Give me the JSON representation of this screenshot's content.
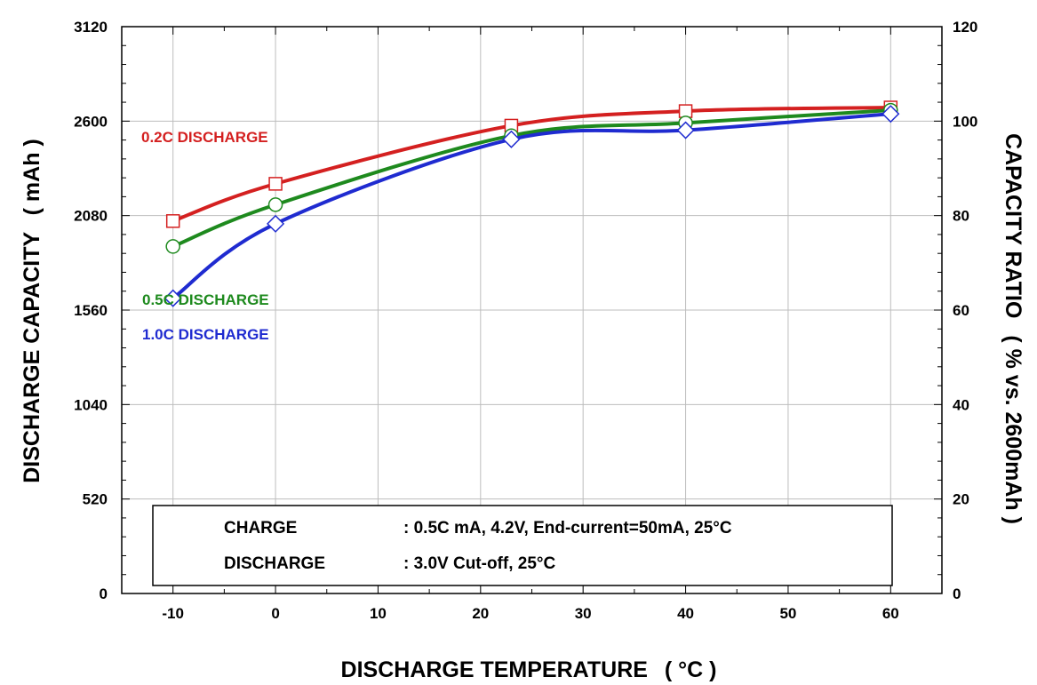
{
  "chart_data": {
    "type": "line",
    "xlabel": "DISCHARGE TEMPERATURE",
    "xlabel_unit": "( °C )",
    "ylabel": "DISCHARGE CAPACITY",
    "ylabel_unit": "( mAh )",
    "y2label": "CAPACITY RATIO",
    "y2label_unit": "( % vs. 2600mAh )",
    "xlim": [
      -15,
      65
    ],
    "ylim": [
      0,
      3120
    ],
    "y2lim": [
      0,
      120
    ],
    "xticks": [
      -10,
      0,
      10,
      20,
      30,
      40,
      50,
      60
    ],
    "xtick_labels": [
      "-10",
      "0",
      "10",
      "20",
      "30",
      "40",
      "50",
      "60"
    ],
    "yticks": [
      0,
      520,
      1040,
      1560,
      2080,
      2600,
      3120
    ],
    "ytick_labels": [
      "0",
      "520",
      "1040",
      "1560",
      "2080",
      "2600",
      "3120"
    ],
    "y2ticks": [
      0,
      20,
      40,
      60,
      80,
      100,
      120
    ],
    "y2tick_labels": [
      "0",
      "20",
      "40",
      "60",
      "80",
      "100",
      "120"
    ],
    "grid": true,
    "series": [
      {
        "name": "0.2C DISCHARGE",
        "color": "#d42020",
        "marker": "square",
        "x": [
          -10,
          0,
          23,
          40,
          60
        ],
        "values": [
          2050,
          2255,
          2575,
          2655,
          2675
        ]
      },
      {
        "name": "0.5C DISCHARGE",
        "color": "#1e8a1e",
        "marker": "circle",
        "x": [
          -10,
          0,
          23,
          40,
          60
        ],
        "values": [
          1910,
          2140,
          2520,
          2590,
          2660
        ]
      },
      {
        "name": "1.0C DISCHARGE",
        "color": "#1f2bd0",
        "marker": "diamond",
        "x": [
          -10,
          0,
          23,
          40,
          60
        ],
        "values": [
          1625,
          2035,
          2500,
          2550,
          2640
        ]
      }
    ],
    "series_label_positions": [
      "upper-left",
      "left",
      "left"
    ],
    "annotations": {
      "charge_label": "CHARGE",
      "charge_value": ": 0.5C mA, 4.2V, End-current=50mA, 25°C",
      "discharge_label": "DISCHARGE",
      "discharge_value": ": 3.0V Cut-off,  25°C"
    }
  }
}
